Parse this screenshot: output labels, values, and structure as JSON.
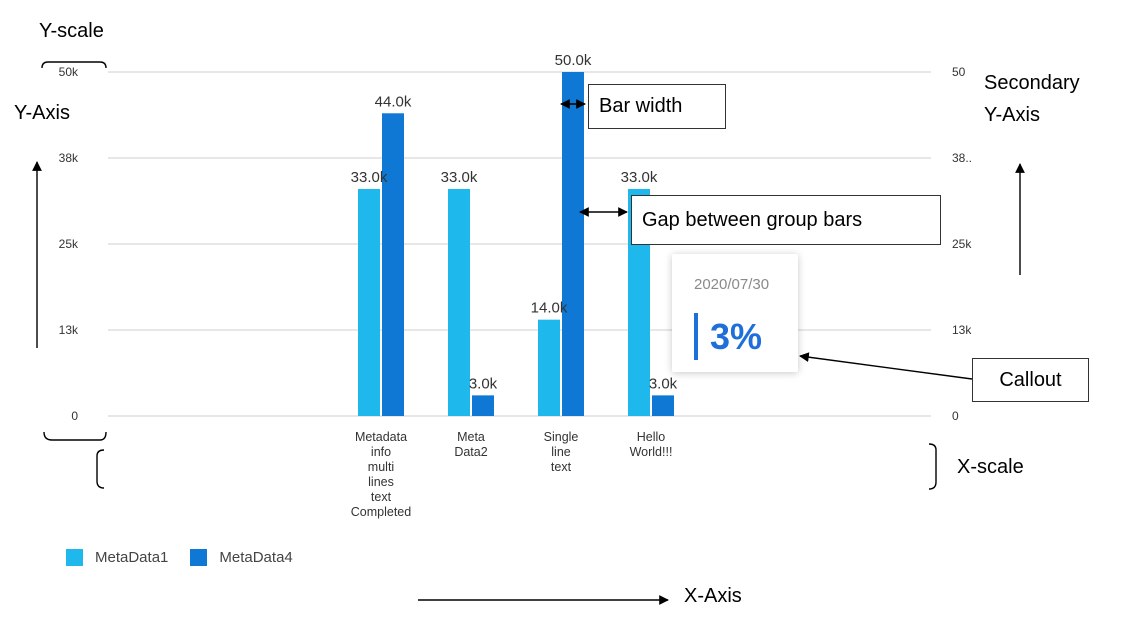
{
  "chart_data": {
    "type": "bar",
    "categories": [
      "Metadata info multi lines text Completed",
      "Meta Data2",
      "Single line text",
      "Hello World!!!"
    ],
    "category_lines": [
      [
        "Metadata",
        "info",
        "multi",
        "lines",
        "text",
        "Completed"
      ],
      [
        "Meta",
        "Data2"
      ],
      [
        "Single",
        "line",
        "text"
      ],
      [
        "Hello",
        "World!!!"
      ]
    ],
    "series": [
      {
        "name": "MetaData1",
        "color": "#1fb8ec",
        "values": [
          33000,
          33000,
          14000,
          33000
        ],
        "labels": [
          "33.0k",
          "33.0k",
          "14.0k",
          "33.0k"
        ]
      },
      {
        "name": "MetaData4",
        "color": "#0f78d4",
        "values": [
          44000,
          3000,
          50000,
          3000
        ],
        "labels": [
          "44.0k",
          "3.0k",
          "50.0k",
          "3.0k"
        ]
      }
    ],
    "ylim": [
      0,
      50000
    ],
    "y_ticks": [
      0,
      12500,
      25000,
      37500,
      50000
    ],
    "y_tick_labels": [
      "0",
      "13k",
      "25k",
      "38k",
      "50k"
    ],
    "y2_tick_labels": [
      "0",
      "13k",
      "25k",
      "38..",
      "50"
    ],
    "grid": true,
    "legend_position": "bottom-left"
  },
  "annotations": {
    "y_scale": "Y-scale",
    "y_axis": "Y-Axis",
    "secondary_y_axis": [
      "Secondary",
      "Y-Axis"
    ],
    "bar_width": "Bar width",
    "gap_between_group_bars": "Gap between group bars",
    "callout": "Callout",
    "x_scale": "X-scale",
    "x_axis": "X-Axis"
  },
  "callout": {
    "date": "2020/07/30",
    "value": "3%"
  }
}
